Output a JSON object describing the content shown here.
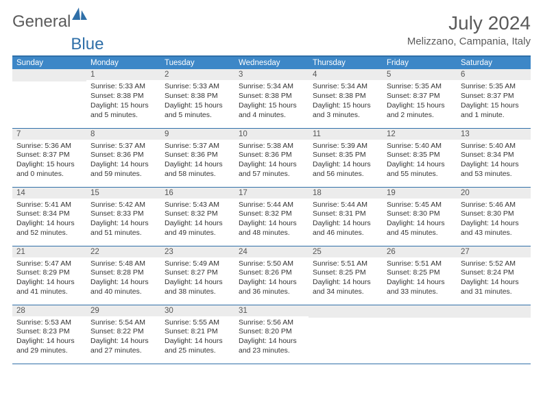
{
  "brand": {
    "part1": "General",
    "part2": "Blue"
  },
  "title": {
    "month": "July 2024",
    "location": "Melizzano, Campania, Italy"
  },
  "colors": {
    "header_bg": "#3d87c7",
    "header_text": "#ffffff",
    "border": "#2f6fa8",
    "daynum_bg": "#ececec",
    "text": "#333333",
    "muted": "#5a5a5a"
  },
  "weekdays": [
    "Sunday",
    "Monday",
    "Tuesday",
    "Wednesday",
    "Thursday",
    "Friday",
    "Saturday"
  ],
  "weeks": [
    [
      null,
      {
        "n": "1",
        "sunrise": "Sunrise: 5:33 AM",
        "sunset": "Sunset: 8:38 PM",
        "day1": "Daylight: 15 hours",
        "day2": "and 5 minutes."
      },
      {
        "n": "2",
        "sunrise": "Sunrise: 5:33 AM",
        "sunset": "Sunset: 8:38 PM",
        "day1": "Daylight: 15 hours",
        "day2": "and 5 minutes."
      },
      {
        "n": "3",
        "sunrise": "Sunrise: 5:34 AM",
        "sunset": "Sunset: 8:38 PM",
        "day1": "Daylight: 15 hours",
        "day2": "and 4 minutes."
      },
      {
        "n": "4",
        "sunrise": "Sunrise: 5:34 AM",
        "sunset": "Sunset: 8:38 PM",
        "day1": "Daylight: 15 hours",
        "day2": "and 3 minutes."
      },
      {
        "n": "5",
        "sunrise": "Sunrise: 5:35 AM",
        "sunset": "Sunset: 8:37 PM",
        "day1": "Daylight: 15 hours",
        "day2": "and 2 minutes."
      },
      {
        "n": "6",
        "sunrise": "Sunrise: 5:35 AM",
        "sunset": "Sunset: 8:37 PM",
        "day1": "Daylight: 15 hours",
        "day2": "and 1 minute."
      }
    ],
    [
      {
        "n": "7",
        "sunrise": "Sunrise: 5:36 AM",
        "sunset": "Sunset: 8:37 PM",
        "day1": "Daylight: 15 hours",
        "day2": "and 0 minutes."
      },
      {
        "n": "8",
        "sunrise": "Sunrise: 5:37 AM",
        "sunset": "Sunset: 8:36 PM",
        "day1": "Daylight: 14 hours",
        "day2": "and 59 minutes."
      },
      {
        "n": "9",
        "sunrise": "Sunrise: 5:37 AM",
        "sunset": "Sunset: 8:36 PM",
        "day1": "Daylight: 14 hours",
        "day2": "and 58 minutes."
      },
      {
        "n": "10",
        "sunrise": "Sunrise: 5:38 AM",
        "sunset": "Sunset: 8:36 PM",
        "day1": "Daylight: 14 hours",
        "day2": "and 57 minutes."
      },
      {
        "n": "11",
        "sunrise": "Sunrise: 5:39 AM",
        "sunset": "Sunset: 8:35 PM",
        "day1": "Daylight: 14 hours",
        "day2": "and 56 minutes."
      },
      {
        "n": "12",
        "sunrise": "Sunrise: 5:40 AM",
        "sunset": "Sunset: 8:35 PM",
        "day1": "Daylight: 14 hours",
        "day2": "and 55 minutes."
      },
      {
        "n": "13",
        "sunrise": "Sunrise: 5:40 AM",
        "sunset": "Sunset: 8:34 PM",
        "day1": "Daylight: 14 hours",
        "day2": "and 53 minutes."
      }
    ],
    [
      {
        "n": "14",
        "sunrise": "Sunrise: 5:41 AM",
        "sunset": "Sunset: 8:34 PM",
        "day1": "Daylight: 14 hours",
        "day2": "and 52 minutes."
      },
      {
        "n": "15",
        "sunrise": "Sunrise: 5:42 AM",
        "sunset": "Sunset: 8:33 PM",
        "day1": "Daylight: 14 hours",
        "day2": "and 51 minutes."
      },
      {
        "n": "16",
        "sunrise": "Sunrise: 5:43 AM",
        "sunset": "Sunset: 8:32 PM",
        "day1": "Daylight: 14 hours",
        "day2": "and 49 minutes."
      },
      {
        "n": "17",
        "sunrise": "Sunrise: 5:44 AM",
        "sunset": "Sunset: 8:32 PM",
        "day1": "Daylight: 14 hours",
        "day2": "and 48 minutes."
      },
      {
        "n": "18",
        "sunrise": "Sunrise: 5:44 AM",
        "sunset": "Sunset: 8:31 PM",
        "day1": "Daylight: 14 hours",
        "day2": "and 46 minutes."
      },
      {
        "n": "19",
        "sunrise": "Sunrise: 5:45 AM",
        "sunset": "Sunset: 8:30 PM",
        "day1": "Daylight: 14 hours",
        "day2": "and 45 minutes."
      },
      {
        "n": "20",
        "sunrise": "Sunrise: 5:46 AM",
        "sunset": "Sunset: 8:30 PM",
        "day1": "Daylight: 14 hours",
        "day2": "and 43 minutes."
      }
    ],
    [
      {
        "n": "21",
        "sunrise": "Sunrise: 5:47 AM",
        "sunset": "Sunset: 8:29 PM",
        "day1": "Daylight: 14 hours",
        "day2": "and 41 minutes."
      },
      {
        "n": "22",
        "sunrise": "Sunrise: 5:48 AM",
        "sunset": "Sunset: 8:28 PM",
        "day1": "Daylight: 14 hours",
        "day2": "and 40 minutes."
      },
      {
        "n": "23",
        "sunrise": "Sunrise: 5:49 AM",
        "sunset": "Sunset: 8:27 PM",
        "day1": "Daylight: 14 hours",
        "day2": "and 38 minutes."
      },
      {
        "n": "24",
        "sunrise": "Sunrise: 5:50 AM",
        "sunset": "Sunset: 8:26 PM",
        "day1": "Daylight: 14 hours",
        "day2": "and 36 minutes."
      },
      {
        "n": "25",
        "sunrise": "Sunrise: 5:51 AM",
        "sunset": "Sunset: 8:25 PM",
        "day1": "Daylight: 14 hours",
        "day2": "and 34 minutes."
      },
      {
        "n": "26",
        "sunrise": "Sunrise: 5:51 AM",
        "sunset": "Sunset: 8:25 PM",
        "day1": "Daylight: 14 hours",
        "day2": "and 33 minutes."
      },
      {
        "n": "27",
        "sunrise": "Sunrise: 5:52 AM",
        "sunset": "Sunset: 8:24 PM",
        "day1": "Daylight: 14 hours",
        "day2": "and 31 minutes."
      }
    ],
    [
      {
        "n": "28",
        "sunrise": "Sunrise: 5:53 AM",
        "sunset": "Sunset: 8:23 PM",
        "day1": "Daylight: 14 hours",
        "day2": "and 29 minutes."
      },
      {
        "n": "29",
        "sunrise": "Sunrise: 5:54 AM",
        "sunset": "Sunset: 8:22 PM",
        "day1": "Daylight: 14 hours",
        "day2": "and 27 minutes."
      },
      {
        "n": "30",
        "sunrise": "Sunrise: 5:55 AM",
        "sunset": "Sunset: 8:21 PM",
        "day1": "Daylight: 14 hours",
        "day2": "and 25 minutes."
      },
      {
        "n": "31",
        "sunrise": "Sunrise: 5:56 AM",
        "sunset": "Sunset: 8:20 PM",
        "day1": "Daylight: 14 hours",
        "day2": "and 23 minutes."
      },
      null,
      null,
      null
    ]
  ]
}
